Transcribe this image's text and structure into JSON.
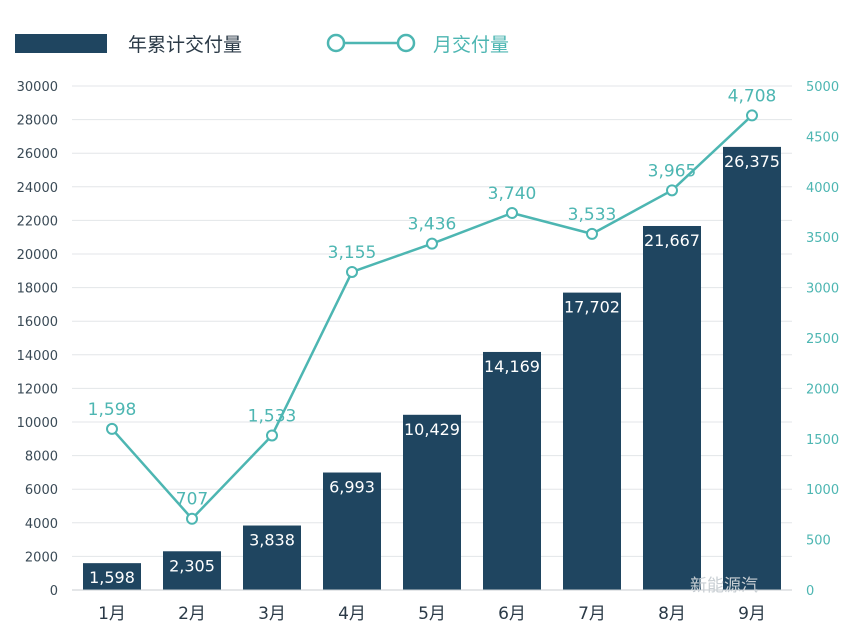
{
  "chart_data": {
    "type": "bar",
    "categories": [
      "1月",
      "2月",
      "3月",
      "4月",
      "5月",
      "6月",
      "7月",
      "8月",
      "9月"
    ],
    "series": [
      {
        "name": "年累计交付量",
        "type": "bar",
        "axis": "left",
        "values": [
          1598,
          2305,
          3838,
          6993,
          10429,
          14169,
          17702,
          21667,
          26375
        ],
        "labels": [
          "1,598",
          "2,305",
          "3,838",
          "6,993",
          "10,429",
          "14,169",
          "17,702",
          "21,667",
          "26,375"
        ]
      },
      {
        "name": "月交付量",
        "type": "line",
        "axis": "right",
        "values": [
          1598,
          707,
          1533,
          3155,
          3436,
          3740,
          3533,
          3965,
          4708
        ],
        "labels": [
          "1,598",
          "707",
          "1,533",
          "3,155",
          "3,436",
          "3,740",
          "3,533",
          "3,965",
          "4,708"
        ]
      }
    ],
    "y_left": {
      "lim": [
        0,
        30000
      ],
      "ticks": [
        "0",
        "2000",
        "4000",
        "6000",
        "8000",
        "10000",
        "12000",
        "14000",
        "16000",
        "18000",
        "20000",
        "22000",
        "24000",
        "26000",
        "28000",
        "30000"
      ]
    },
    "y_right": {
      "lim": [
        0,
        5000
      ],
      "ticks": [
        "0",
        "500",
        "1000",
        "1500",
        "2000",
        "2500",
        "3000",
        "3500",
        "4000",
        "4500",
        "5000"
      ]
    },
    "grid": true,
    "legend_position": "top-left",
    "colors": {
      "bar": "#1f4560",
      "line": "#4db6b2",
      "axis_text": "#3a4a56",
      "grid": "#e3e6e8"
    },
    "watermark": "新能源汽"
  }
}
